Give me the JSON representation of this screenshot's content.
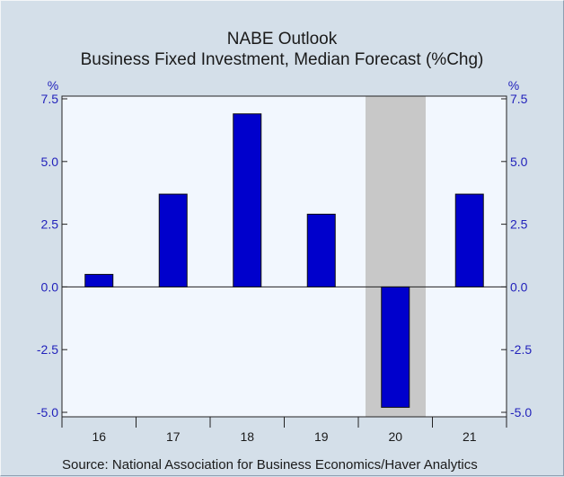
{
  "chart_data": {
    "type": "bar",
    "title": "NABE Outlook",
    "subtitle": "Business Fixed Investment, Median Forecast (%Chg)",
    "source": "Source:  National Association for Business Economics/Haver Analytics",
    "categories": [
      "16",
      "17",
      "18",
      "19",
      "20",
      "21"
    ],
    "values": [
      0.5,
      3.7,
      6.9,
      2.9,
      -4.8,
      3.7
    ],
    "ylim": [
      -5.0,
      7.5
    ],
    "yticks": [
      "7.5",
      "5.0",
      "2.5",
      "0.0",
      "-2.5",
      "-5.0"
    ],
    "yunit_left": "%",
    "yunit_right": "%",
    "shaded_category": "20",
    "colors": {
      "bar": "#0000cc",
      "plot_bg": "#f2f7fe",
      "shade": "#c8c8c8",
      "tick_text": "#2222bb"
    }
  }
}
